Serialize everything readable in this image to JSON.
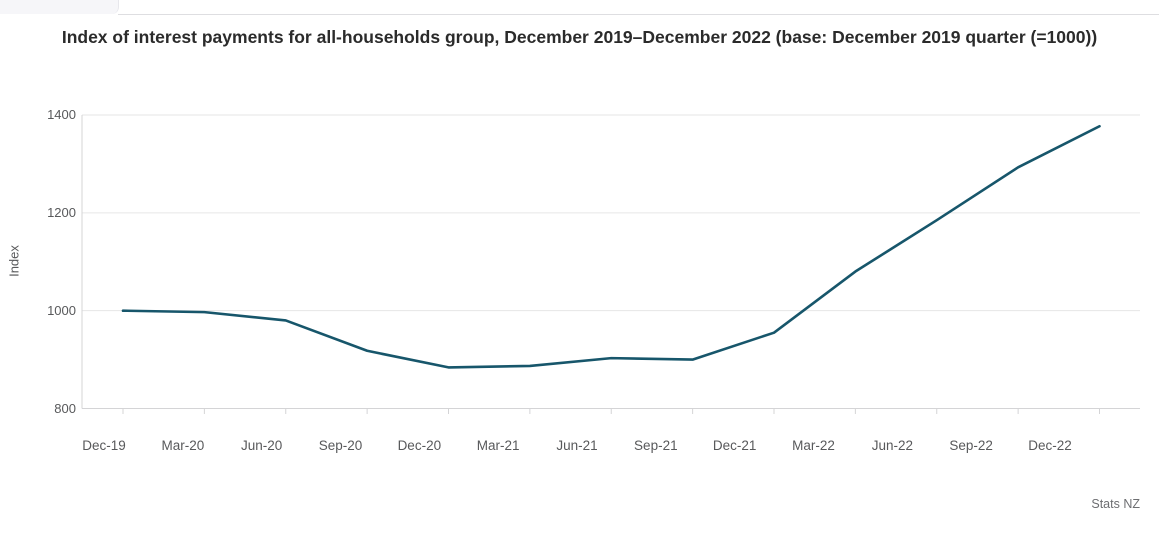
{
  "chart_data": {
    "type": "line",
    "title": "Index of interest payments for all-households group, December 2019–December 2022 (base: December 2019 quarter (=1000))",
    "categories": [
      "Dec-19",
      "Mar-20",
      "Jun-20",
      "Sep-20",
      "Dec-20",
      "Mar-21",
      "Jun-21",
      "Sep-21",
      "Dec-21",
      "Mar-22",
      "Jun-22",
      "Sep-22",
      "Dec-22"
    ],
    "values": [
      1000,
      997,
      980,
      918,
      884,
      887,
      903,
      900,
      955,
      1080,
      1185,
      1293,
      1377
    ],
    "series_name": "Index of interest payments, all-households group",
    "xlabel": "",
    "ylabel": "Index",
    "ylim": [
      800,
      1400
    ],
    "yticks": [
      800,
      1000,
      1200,
      1400
    ],
    "grid": "horizontal",
    "legend": "none",
    "source": "Stats NZ",
    "colors": {
      "line": "#17566b",
      "grid": "#e6e6e6",
      "axis_line": "#d4d4d6",
      "axis_text": "#58595b",
      "title_text": "#2b2b2b",
      "source_text": "#6d6e71"
    }
  }
}
